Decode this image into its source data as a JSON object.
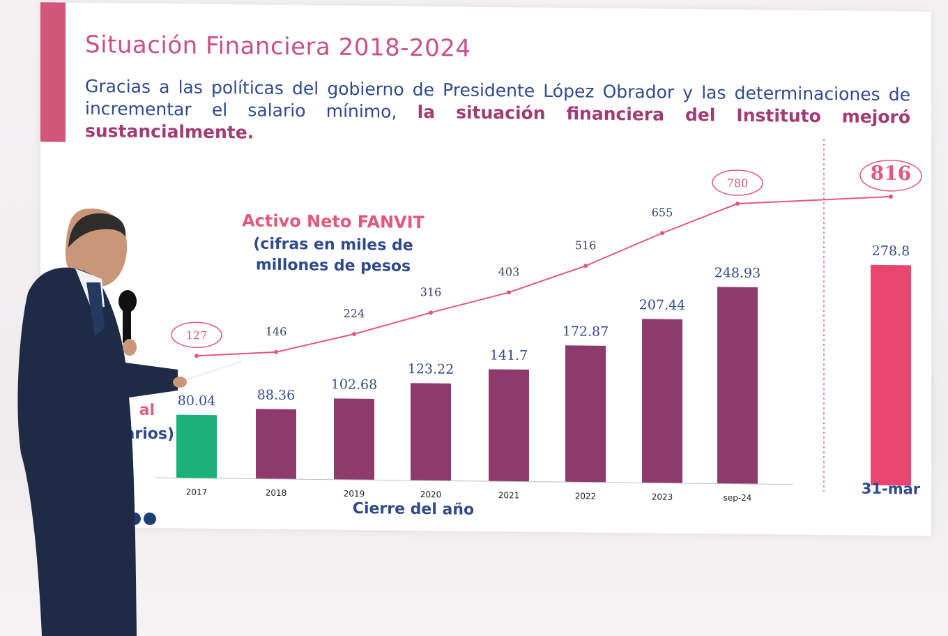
{
  "slide": {
    "title": "Situación Financiera 2018-2024",
    "paragraph_plain": "Gracias a las políticas del gobierno de Presidente López Obrador y las determinaciones de incrementar el salario mínimo,",
    "paragraph_bold": "la situación financiera del Instituto mejoró sustancialmente.",
    "chart_title": "Activo Neto FANVIT",
    "chart_subtitle_1": "(cifras en miles de",
    "chart_subtitle_2": "millones de pesos",
    "xlabel": "Cierre del año",
    "left_partial_1": "al",
    "left_partial_2": "arios)",
    "highlight_value": "816",
    "highlight_year_value": "780"
  },
  "chart_data": {
    "type": "bar",
    "categories": [
      "2017",
      "2018",
      "2019",
      "2020",
      "2021",
      "2022",
      "2023",
      "sep-24",
      "31-mar"
    ],
    "series": [
      {
        "values": [
          80.04,
          88.36,
          102.68,
          123.22,
          141.7,
          172.87,
          207.44,
          248.93,
          278.8
        ],
        "labels": [
          "80.04",
          "88.36",
          "102.68",
          "123.22",
          "141.7",
          "172.87",
          "207.44",
          "248.93",
          "278.8"
        ]
      },
      {
        "values": [
          127,
          146,
          224,
          316,
          403,
          516,
          655,
          780,
          816
        ],
        "labels": [
          "127",
          "146",
          "224",
          "316",
          "403",
          "516",
          "655",
          "780",
          "816"
        ]
      }
    ],
    "colors": {
      "bar_2017": "#1cb07a",
      "bar_default": "#8e3a6d",
      "bar_last": "#e8456f",
      "line": "#e4577a",
      "value_text": "#2f4a8c",
      "line_text": "#334066"
    }
  }
}
